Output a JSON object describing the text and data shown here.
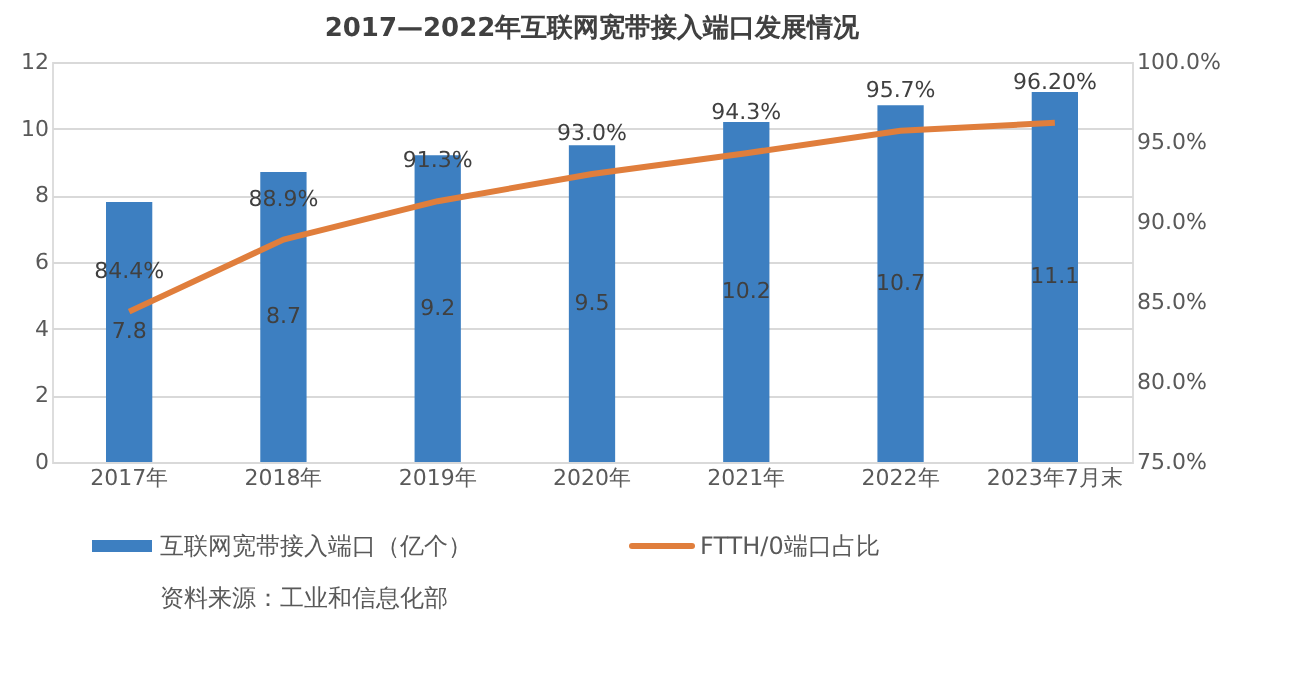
{
  "chart_data": {
    "type": "bar",
    "title": "2017—2022年互联网宽带接入端口发展情况",
    "categories": [
      "2017年",
      "2018年",
      "2019年",
      "2020年",
      "2021年",
      "2022年",
      "2023年7月末"
    ],
    "series": [
      {
        "name": "互联网宽带接入端口（亿个）",
        "type": "bar",
        "color": "#3d7fc1",
        "values": [
          7.8,
          8.7,
          9.2,
          9.5,
          10.2,
          10.7,
          11.1
        ],
        "value_labels": [
          "7.8",
          "8.7",
          "9.2",
          "9.5",
          "10.2",
          "10.7",
          "11.1"
        ]
      },
      {
        "name": "FTTH/0端口占比",
        "type": "line",
        "axis": "y2",
        "color": "#e07e3c",
        "values": [
          84.4,
          88.9,
          91.3,
          93.0,
          94.3,
          95.7,
          96.2
        ],
        "value_labels": [
          "84.4%",
          "88.9%",
          "91.3%",
          "93.0%",
          "94.3%",
          "95.7%",
          "96.20%"
        ]
      }
    ],
    "ylim": [
      0,
      12
    ],
    "yticks": [
      0,
      2,
      4,
      6,
      8,
      10,
      12
    ],
    "y2lim": [
      75,
      100
    ],
    "y2ticks": [
      {
        "value": 75,
        "label": "75.0%"
      },
      {
        "value": 80,
        "label": "80.0%"
      },
      {
        "value": 85,
        "label": "85.0%"
      },
      {
        "value": 90,
        "label": "90.0%"
      },
      {
        "value": 95,
        "label": "95.0%"
      },
      {
        "value": 100,
        "label": "100.0%"
      }
    ],
    "grid": "y",
    "legend": "bottom",
    "annotations": [
      "资料来源：工业和信息化部"
    ]
  }
}
